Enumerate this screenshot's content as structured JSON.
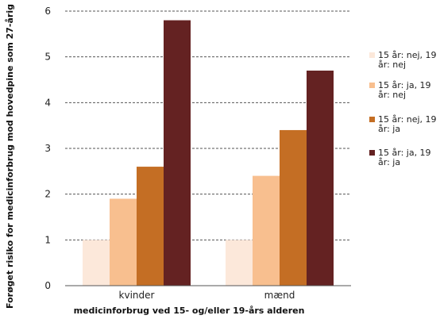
{
  "chart_data": {
    "type": "bar",
    "title": "",
    "xlabel": "medicinforbrug ved 15- og/eller 19-års alderen",
    "ylabel": "Forøget risiko for medicinforbrug mod hovedpine som 27-årig",
    "categories": [
      "kvinder",
      "mænd"
    ],
    "ylim": [
      0,
      6
    ],
    "yticks": [
      0,
      1,
      2,
      3,
      4,
      5,
      6
    ],
    "grid": true,
    "legend_position": "right",
    "series": [
      {
        "name": "15 år: nej, 19 år: nej",
        "legend_lines": [
          "15 år: nej, 19",
          "år: nej"
        ],
        "color": "#fce8da",
        "values": [
          1.0,
          1.0
        ]
      },
      {
        "name": "15 år: ja, 19 år: nej",
        "legend_lines": [
          "15 år: ja, 19",
          "år: nej"
        ],
        "color": "#f8bf8f",
        "values": [
          1.9,
          2.4
        ]
      },
      {
        "name": "15 år: nej, 19 år: ja",
        "legend_lines": [
          "15 år: nej, 19",
          "år: ja"
        ],
        "color": "#c46e24",
        "values": [
          2.6,
          3.4
        ]
      },
      {
        "name": "15 år: ja, 19 år: ja",
        "legend_lines": [
          "15 år: ja, 19",
          "år: ja"
        ],
        "color": "#642222",
        "values": [
          5.8,
          4.7
        ]
      }
    ]
  }
}
